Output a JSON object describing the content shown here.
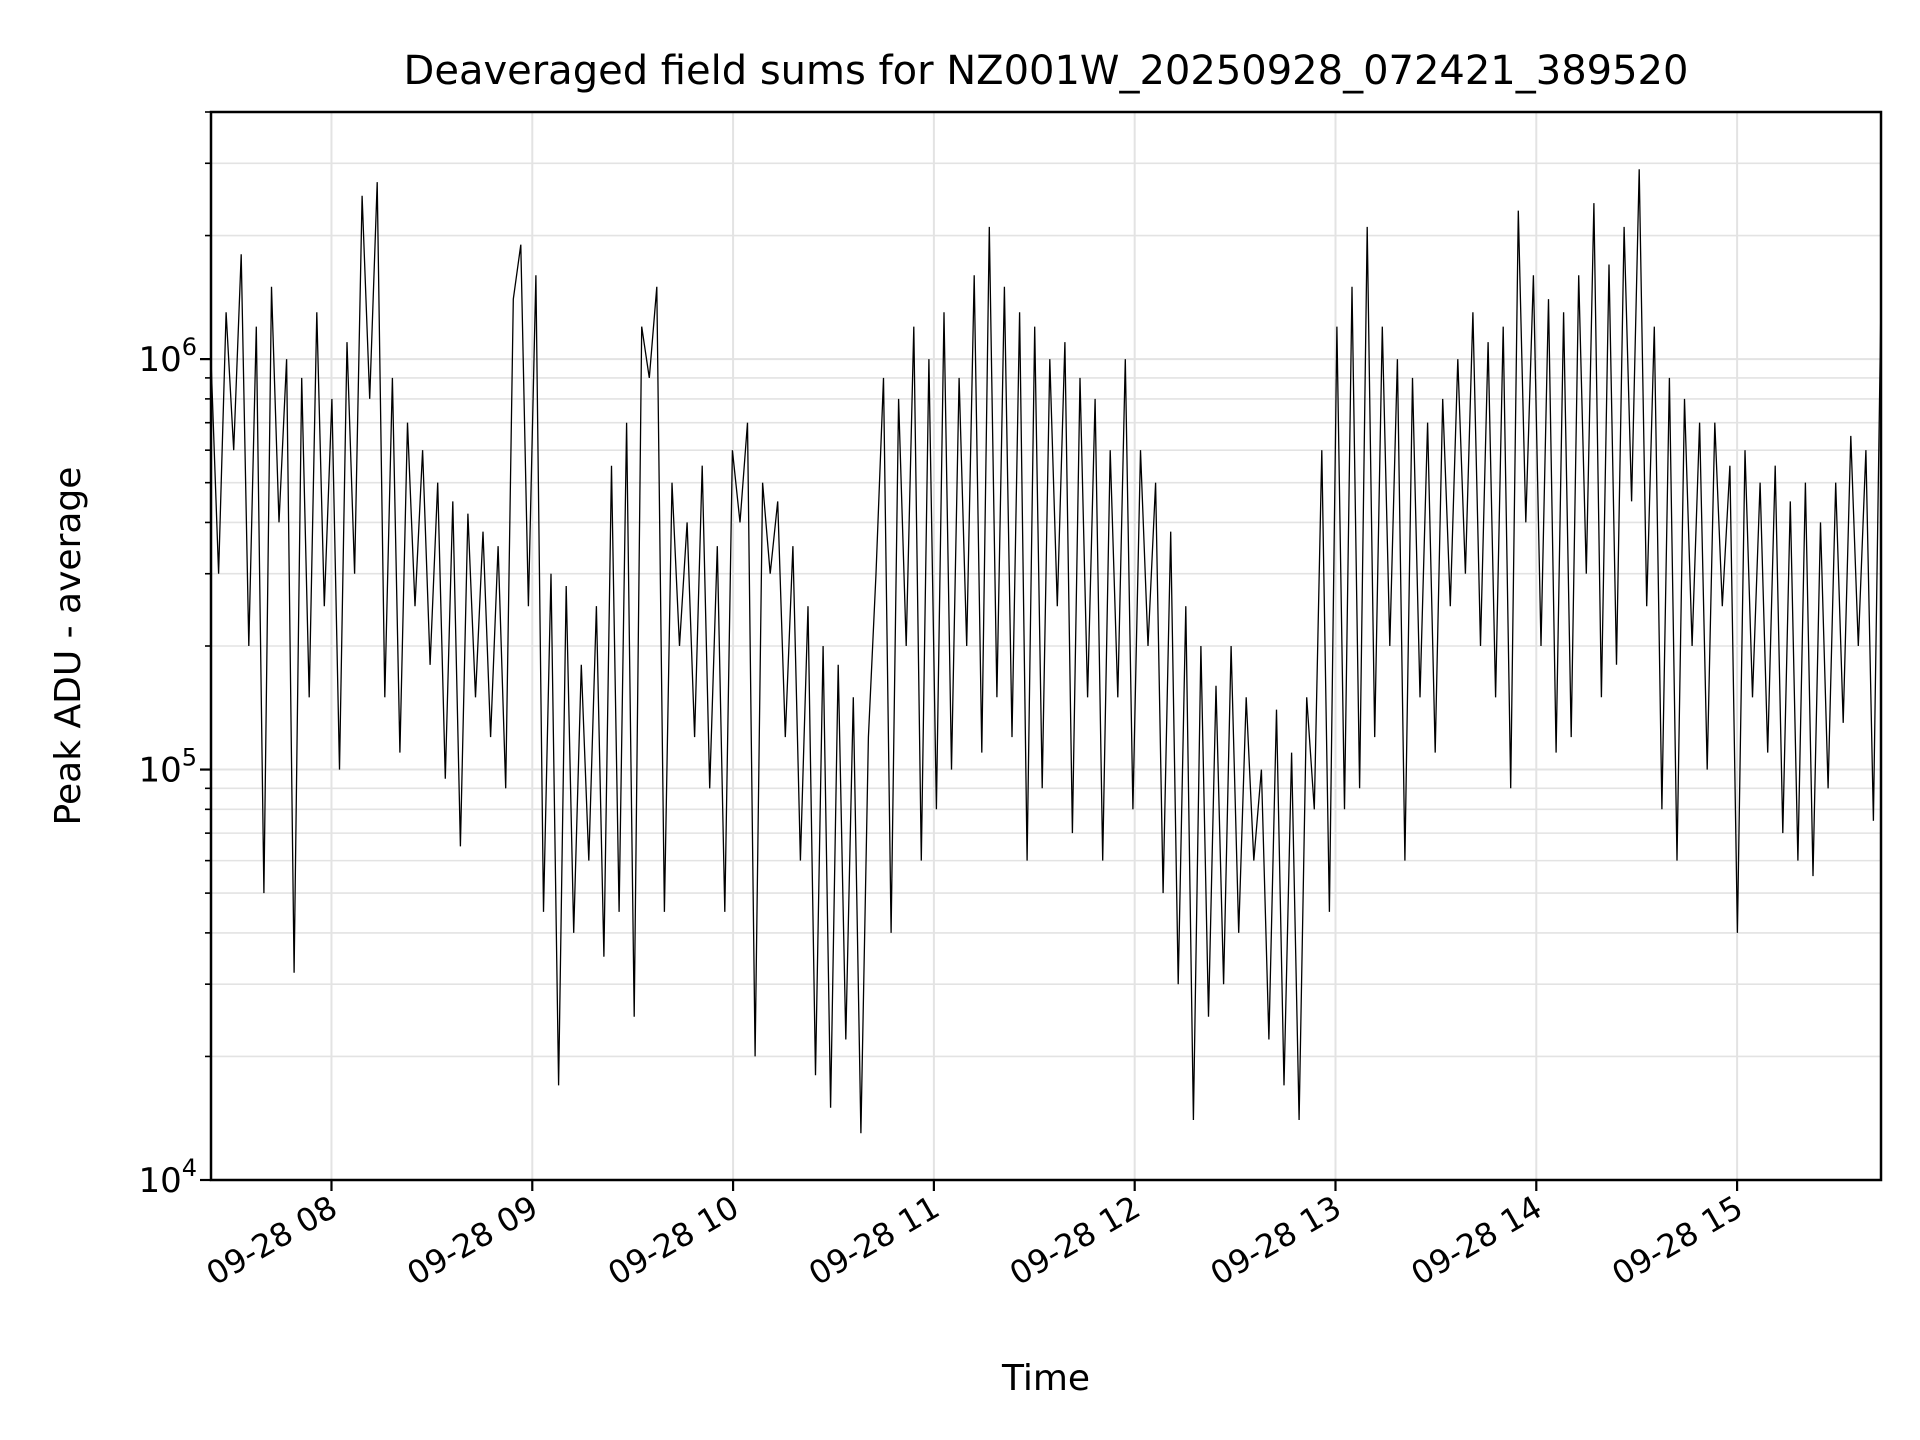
{
  "chart_data": {
    "type": "line",
    "title": "Deaveraged field sums for NZ001W_20250928_072421_389520",
    "xlabel": "Time",
    "ylabel": "Peak ADU - average",
    "y_scale": "log",
    "ylim": [
      10000,
      4000000
    ],
    "xlim": [
      "09-28 07:24",
      "09-28 15:43"
    ],
    "grid": true,
    "line_color": "#000000",
    "x_ticks": [
      {
        "time": "09-28 08:00",
        "label": "09-28 08"
      },
      {
        "time": "09-28 09:00",
        "label": "09-28 09"
      },
      {
        "time": "09-28 10:00",
        "label": "09-28 10"
      },
      {
        "time": "09-28 11:00",
        "label": "09-28 11"
      },
      {
        "time": "09-28 12:00",
        "label": "09-28 12"
      },
      {
        "time": "09-28 13:00",
        "label": "09-28 13"
      },
      {
        "time": "09-28 14:00",
        "label": "09-28 14"
      },
      {
        "time": "09-28 15:00",
        "label": "09-28 15"
      }
    ],
    "y_ticks": [
      {
        "value": 10000,
        "base": "10",
        "exp": "4"
      },
      {
        "value": 100000,
        "base": "10",
        "exp": "5"
      },
      {
        "value": 1000000,
        "base": "10",
        "exp": "6"
      }
    ],
    "series": [
      {
        "x_start": "09-28 07:24",
        "x_end": "09-28 15:43",
        "values": [
          1000000,
          300000,
          1300000,
          600000,
          1800000,
          200000,
          1200000,
          50000,
          1500000,
          400000,
          1000000,
          32000,
          900000,
          150000,
          1300000,
          250000,
          800000,
          100000,
          1100000,
          300000,
          2500000,
          800000,
          2700000,
          150000,
          900000,
          110000,
          700000,
          250000,
          600000,
          180000,
          500000,
          95000,
          450000,
          65000,
          420000,
          150000,
          380000,
          120000,
          350000,
          90000,
          1400000,
          1900000,
          250000,
          1600000,
          45000,
          300000,
          17000,
          280000,
          40000,
          180000,
          60000,
          250000,
          35000,
          550000,
          45000,
          700000,
          25000,
          1200000,
          900000,
          1500000,
          45000,
          500000,
          200000,
          400000,
          120000,
          550000,
          90000,
          350000,
          45000,
          600000,
          400000,
          700000,
          20000,
          500000,
          300000,
          450000,
          120000,
          350000,
          60000,
          250000,
          18000,
          200000,
          15000,
          180000,
          22000,
          150000,
          13000,
          120000,
          300000,
          900000,
          40000,
          800000,
          200000,
          1200000,
          60000,
          1000000,
          80000,
          1300000,
          100000,
          900000,
          200000,
          1600000,
          110000,
          2100000,
          150000,
          1500000,
          120000,
          1300000,
          60000,
          1200000,
          90000,
          1000000,
          250000,
          1100000,
          70000,
          900000,
          150000,
          800000,
          60000,
          600000,
          150000,
          1000000,
          80000,
          600000,
          200000,
          500000,
          50000,
          380000,
          30000,
          250000,
          14000,
          200000,
          25000,
          160000,
          30000,
          200000,
          40000,
          150000,
          60000,
          100000,
          22000,
          140000,
          17000,
          110000,
          14000,
          150000,
          80000,
          600000,
          45000,
          1200000,
          80000,
          1500000,
          90000,
          2100000,
          120000,
          1200000,
          200000,
          1000000,
          60000,
          900000,
          150000,
          700000,
          110000,
          800000,
          250000,
          1000000,
          300000,
          1300000,
          200000,
          1100000,
          150000,
          1200000,
          90000,
          2300000,
          400000,
          1600000,
          200000,
          1400000,
          110000,
          1300000,
          120000,
          1600000,
          300000,
          2400000,
          150000,
          1700000,
          180000,
          2100000,
          450000,
          2900000,
          250000,
          1200000,
          80000,
          900000,
          60000,
          800000,
          200000,
          700000,
          100000,
          700000,
          250000,
          550000,
          40000,
          600000,
          150000,
          500000,
          110000,
          550000,
          70000,
          450000,
          60000,
          500000,
          55000,
          400000,
          90000,
          500000,
          130000,
          650000,
          200000,
          600000,
          75000,
          1400000
        ]
      }
    ]
  }
}
